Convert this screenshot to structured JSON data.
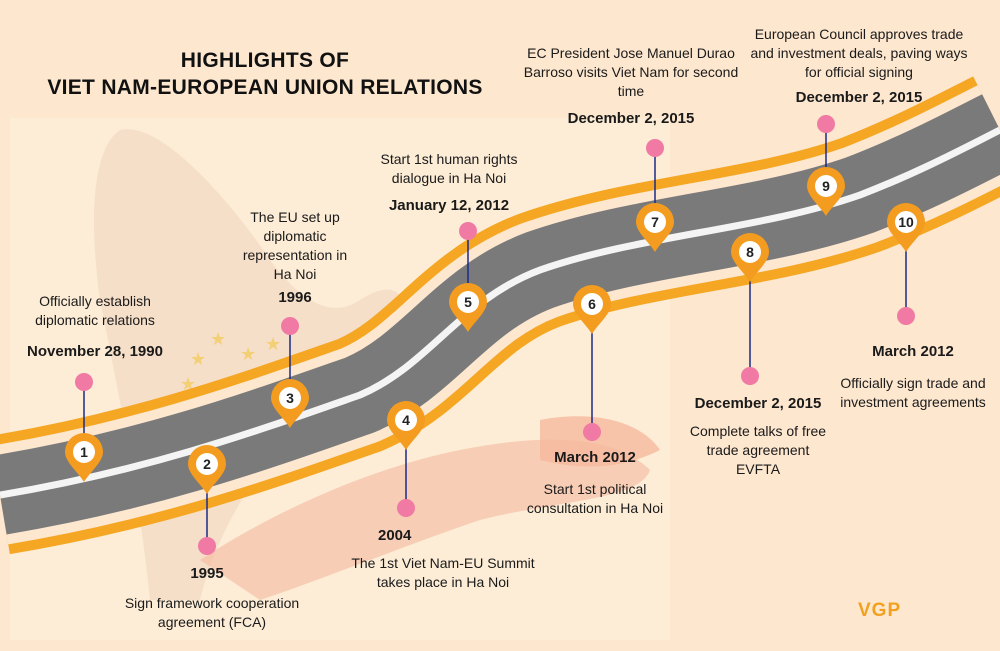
{
  "title": {
    "line1": "HIGHLIGHTS OF",
    "line2": "VIET NAM-EUROPEAN UNION RELATIONS"
  },
  "events": [
    {
      "num": "1",
      "date": "November 28, 1990",
      "desc": "Officially establish diplomatic relations"
    },
    {
      "num": "2",
      "date": "1995",
      "desc": "Sign framework cooperation agreement (FCA)"
    },
    {
      "num": "3",
      "date": "1996",
      "desc": "The EU set up diplomatic representation in Ha Noi"
    },
    {
      "num": "4",
      "date": "2004",
      "desc": "The 1st Viet Nam-EU Summit takes place in Ha Noi"
    },
    {
      "num": "5",
      "date": "January 12, 2012",
      "desc": "Start 1st human rights dialogue in Ha Noi"
    },
    {
      "num": "6",
      "date": "March 2012",
      "desc": "Start 1st political consultation in Ha Noi"
    },
    {
      "num": "7",
      "date": "December 2, 2015",
      "desc": "EC President Jose Manuel Durao Barroso visits Viet Nam for second time"
    },
    {
      "num": "8",
      "date": "December 2, 2015",
      "desc": "Complete talks of free trade agreement EVFTA"
    },
    {
      "num": "9",
      "date": "December 2, 2015",
      "desc": "European Council approves trade and investment deals, paving ways for official signing"
    },
    {
      "num": "10",
      "date": "March 2012",
      "desc": "Officially sign trade and investment agreements"
    }
  ],
  "logo": "VGP",
  "colors": {
    "background": "#fde7cf",
    "road": "#7a7a7a",
    "road_edge": "#f5a623",
    "marker": "#f39c1f",
    "dot": "#f07aa3",
    "connector": "#1a2a8a",
    "logo": "#f2a11f"
  }
}
